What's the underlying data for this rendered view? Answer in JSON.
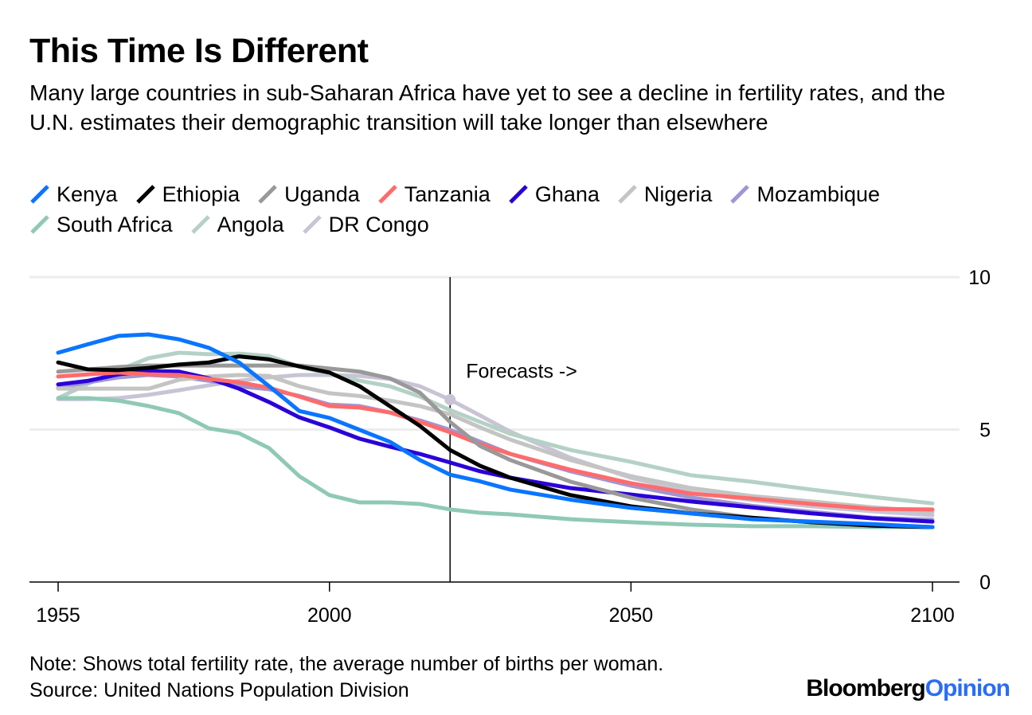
{
  "title": "This Time Is Different",
  "subtitle": "Many large countries in sub-Saharan Africa have yet to see a decline in fertility rates, and the U.N. estimates their demographic transition will take longer than elsewhere",
  "note": "Note: Shows total fertility rate, the average number of births per woman.",
  "source": "Source: United Nations Population Division",
  "logo": {
    "part1": "Bloomberg",
    "part2": "Opinion"
  },
  "chart_data": {
    "type": "line",
    "title": "This Time Is Different",
    "xlabel": "",
    "ylabel": "",
    "xlim": [
      1955,
      2100
    ],
    "ylim": [
      0,
      10
    ],
    "xticks": [
      1955,
      2000,
      2050,
      2100
    ],
    "yticks": [
      0,
      5,
      10
    ],
    "grid": "horizontal",
    "legend_position": "top",
    "annotation": {
      "text": "Forecasts ->",
      "x": 2020
    },
    "x": [
      1955,
      1960,
      1965,
      1970,
      1975,
      1980,
      1985,
      1990,
      1995,
      2000,
      2005,
      2010,
      2015,
      2020,
      2025,
      2030,
      2040,
      2050,
      2060,
      2070,
      2080,
      2090,
      2100
    ],
    "series": [
      {
        "name": "Kenya",
        "color": "#0a75ff",
        "values": [
          7.52,
          7.8,
          8.07,
          8.12,
          7.96,
          7.68,
          7.2,
          6.42,
          5.61,
          5.38,
          4.99,
          4.6,
          4.0,
          3.52,
          3.3,
          3.03,
          2.7,
          2.43,
          2.25,
          2.06,
          1.98,
          1.9,
          1.8
        ]
      },
      {
        "name": "Ethiopia",
        "color": "#000000",
        "values": [
          7.2,
          6.97,
          6.95,
          7.02,
          7.13,
          7.2,
          7.4,
          7.3,
          7.07,
          6.87,
          6.42,
          5.77,
          5.12,
          4.33,
          3.81,
          3.42,
          2.85,
          2.48,
          2.25,
          2.11,
          1.96,
          1.85,
          1.8
        ]
      },
      {
        "name": "Uganda",
        "color": "#999999",
        "values": [
          6.9,
          6.97,
          7.05,
          7.1,
          7.1,
          7.1,
          7.1,
          7.1,
          7.1,
          7.0,
          6.9,
          6.68,
          6.21,
          5.25,
          4.46,
          4.0,
          3.29,
          2.77,
          2.38,
          2.11,
          1.96,
          1.85,
          1.8
        ]
      },
      {
        "name": "Tanzania",
        "color": "#ff6b6b",
        "values": [
          6.74,
          6.81,
          6.87,
          6.81,
          6.79,
          6.66,
          6.55,
          6.37,
          6.08,
          5.77,
          5.72,
          5.56,
          5.25,
          4.91,
          4.52,
          4.2,
          3.68,
          3.24,
          2.9,
          2.74,
          2.56,
          2.4,
          2.38
        ]
      },
      {
        "name": "Ghana",
        "color": "#2a00d8",
        "values": [
          6.48,
          6.6,
          6.81,
          6.92,
          6.9,
          6.68,
          6.34,
          5.9,
          5.4,
          5.07,
          4.7,
          4.44,
          4.2,
          3.92,
          3.63,
          3.42,
          3.08,
          2.87,
          2.64,
          2.45,
          2.25,
          2.09,
          1.98
        ]
      },
      {
        "name": "Nigeria",
        "color": "#c4c4c4",
        "values": [
          6.34,
          6.34,
          6.34,
          6.34,
          6.63,
          6.74,
          6.79,
          6.76,
          6.42,
          6.19,
          6.1,
          5.95,
          5.77,
          5.5,
          5.07,
          4.67,
          4.0,
          3.47,
          3.08,
          2.82,
          2.64,
          2.45,
          2.3
        ]
      },
      {
        "name": "Mozambique",
        "color": "#a096d2",
        "values": [
          6.37,
          6.55,
          6.71,
          6.79,
          6.74,
          6.6,
          6.42,
          6.32,
          6.1,
          5.82,
          5.77,
          5.56,
          5.3,
          4.99,
          4.6,
          4.2,
          3.63,
          3.16,
          2.77,
          2.5,
          2.3,
          2.11,
          2.04
        ]
      },
      {
        "name": "South Africa",
        "color": "#8fc9b6",
        "values": [
          6.03,
          6.03,
          5.95,
          5.77,
          5.54,
          5.04,
          4.88,
          4.39,
          3.47,
          2.85,
          2.61,
          2.61,
          2.56,
          2.38,
          2.27,
          2.22,
          2.06,
          1.96,
          1.88,
          1.83,
          1.83,
          1.8,
          1.8
        ]
      },
      {
        "name": "Angola",
        "color": "#b5d1c6",
        "values": [
          6.03,
          6.5,
          6.95,
          7.34,
          7.52,
          7.47,
          7.49,
          7.41,
          7.07,
          6.81,
          6.6,
          6.42,
          6.08,
          5.64,
          5.25,
          4.86,
          4.33,
          3.94,
          3.5,
          3.29,
          3.03,
          2.79,
          2.58
        ]
      },
      {
        "name": "DR Congo",
        "color": "#c8c4d6",
        "values": [
          6.0,
          6.0,
          6.03,
          6.14,
          6.29,
          6.45,
          6.6,
          6.71,
          6.79,
          6.79,
          6.76,
          6.66,
          6.42,
          5.98,
          5.46,
          4.93,
          4.07,
          3.42,
          2.95,
          2.69,
          2.48,
          2.32,
          2.19
        ]
      }
    ]
  }
}
